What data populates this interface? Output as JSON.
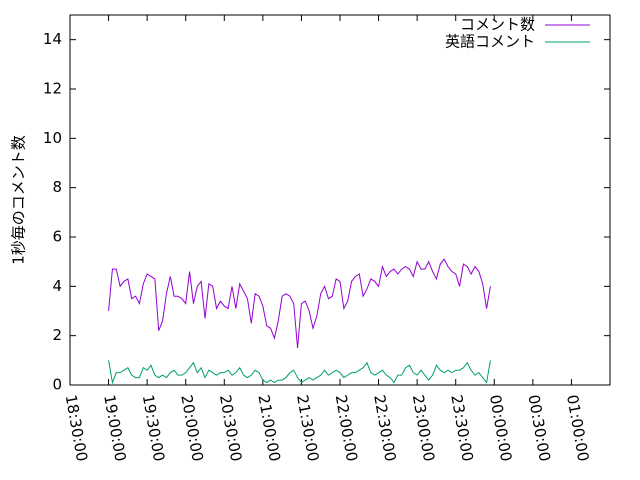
{
  "chart_data": {
    "type": "line",
    "title": "",
    "xlabel": "",
    "ylabel": "1秒毎のコメント数",
    "ylim": [
      0,
      15
    ],
    "yticks": [
      0,
      2,
      4,
      6,
      8,
      10,
      12,
      14
    ],
    "xticks": [
      "18:30:00",
      "19:00:00",
      "19:30:00",
      "20:00:00",
      "20:30:00",
      "21:00:00",
      "21:30:00",
      "22:00:00",
      "22:30:00",
      "23:00:00",
      "23:30:00",
      "00:00:00",
      "00:30:00",
      "01:00:00"
    ],
    "xlim_seconds": [
      66600,
      91800
    ],
    "legend_position": "top-right",
    "grid": false,
    "series": [
      {
        "name": "コメント数",
        "color": "#9400d3",
        "x_start": "19:00:00",
        "x_step_seconds": 180,
        "values": [
          3.0,
          4.7,
          4.7,
          4.0,
          4.2,
          4.3,
          3.5,
          3.6,
          3.3,
          4.1,
          4.5,
          4.4,
          4.3,
          2.2,
          2.6,
          3.7,
          4.4,
          3.6,
          3.6,
          3.5,
          3.3,
          4.6,
          3.3,
          4.0,
          4.2,
          2.7,
          4.1,
          4.0,
          3.1,
          3.4,
          3.2,
          3.1,
          4.0,
          3.1,
          4.1,
          3.8,
          3.5,
          2.5,
          3.7,
          3.6,
          3.2,
          2.4,
          2.3,
          1.9,
          2.6,
          3.6,
          3.7,
          3.6,
          3.3,
          1.5,
          3.3,
          3.4,
          3.0,
          2.3,
          2.8,
          3.7,
          4.0,
          3.5,
          3.6,
          4.3,
          4.2,
          3.1,
          3.4,
          4.2,
          4.4,
          4.5,
          3.6,
          3.9,
          4.3,
          4.2,
          4.0,
          4.8,
          4.4,
          4.6,
          4.7,
          4.5,
          4.7,
          4.8,
          4.7,
          4.4,
          5.0,
          4.7,
          4.7,
          5.0,
          4.6,
          4.3,
          4.9,
          5.1,
          4.8,
          4.6,
          4.5,
          4.0,
          4.9,
          4.8,
          4.5,
          4.8,
          4.6,
          4.1,
          3.1,
          4.0
        ]
      },
      {
        "name": "英語コメント",
        "color": "#009e73",
        "x_start": "19:00:00",
        "x_step_seconds": 180,
        "values": [
          1.0,
          0.1,
          0.5,
          0.5,
          0.6,
          0.7,
          0.4,
          0.3,
          0.3,
          0.7,
          0.6,
          0.8,
          0.4,
          0.3,
          0.4,
          0.3,
          0.5,
          0.6,
          0.4,
          0.4,
          0.5,
          0.7,
          0.9,
          0.5,
          0.7,
          0.3,
          0.6,
          0.5,
          0.4,
          0.5,
          0.5,
          0.6,
          0.4,
          0.5,
          0.7,
          0.4,
          0.3,
          0.4,
          0.6,
          0.5,
          0.2,
          0.1,
          0.2,
          0.1,
          0.2,
          0.2,
          0.3,
          0.5,
          0.6,
          0.3,
          0.1,
          0.2,
          0.3,
          0.2,
          0.3,
          0.4,
          0.6,
          0.4,
          0.5,
          0.6,
          0.5,
          0.3,
          0.4,
          0.5,
          0.5,
          0.6,
          0.7,
          0.9,
          0.5,
          0.4,
          0.5,
          0.6,
          0.4,
          0.3,
          0.1,
          0.4,
          0.4,
          0.7,
          0.8,
          0.5,
          0.4,
          0.6,
          0.4,
          0.2,
          0.4,
          0.8,
          0.6,
          0.5,
          0.6,
          0.5,
          0.6,
          0.6,
          0.7,
          0.9,
          0.6,
          0.4,
          0.5,
          0.3,
          0.1,
          1.0
        ]
      }
    ]
  }
}
